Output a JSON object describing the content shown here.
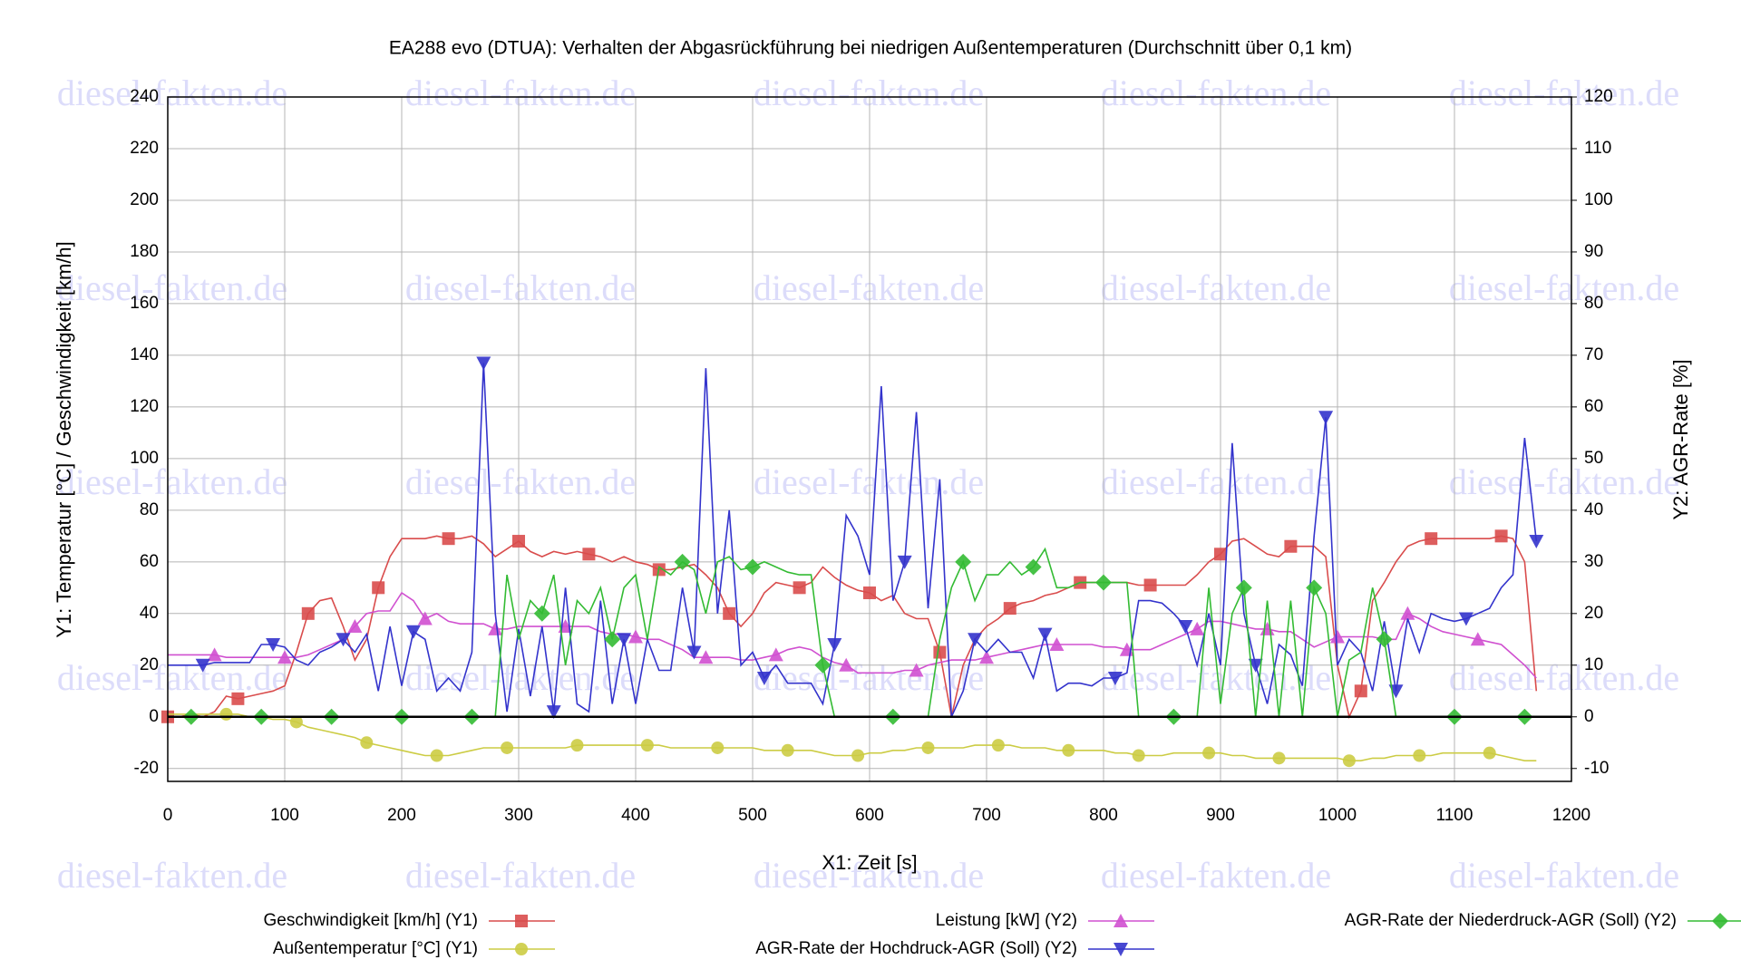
{
  "chart_data": {
    "type": "line",
    "title": "EA288 evo (DTUA): Verhalten der Abgasrückführung bei niedrigen Außentemperaturen (Durchschnitt über 0,1 km)",
    "watermark": "diesel-fakten.de",
    "x_label": "X1: Zeit [s]",
    "y_label": "Y1: Temperatur [°C] / Geschwindigkeit [km/h]",
    "y2_label": "Y2: AGR-Rate [%]",
    "xlim": [
      0,
      1200
    ],
    "xticks": [
      0,
      100,
      200,
      300,
      400,
      500,
      600,
      700,
      800,
      900,
      1000,
      1100,
      1200
    ],
    "ylim": [
      -25,
      240
    ],
    "yticks": [
      -20,
      0,
      20,
      40,
      60,
      80,
      100,
      120,
      140,
      160,
      180,
      200,
      220,
      240
    ],
    "y2lim": [
      -12.5,
      120
    ],
    "y2ticks": [
      -10,
      0,
      10,
      20,
      30,
      40,
      50,
      60,
      70,
      80,
      90,
      100,
      110,
      120
    ],
    "grid": true,
    "x": [
      0,
      10,
      20,
      30,
      40,
      50,
      60,
      70,
      80,
      90,
      100,
      110,
      120,
      130,
      140,
      150,
      160,
      170,
      180,
      190,
      200,
      210,
      220,
      230,
      240,
      250,
      260,
      270,
      280,
      290,
      300,
      310,
      320,
      330,
      340,
      350,
      360,
      370,
      380,
      390,
      400,
      410,
      420,
      430,
      440,
      450,
      460,
      470,
      480,
      490,
      500,
      510,
      520,
      530,
      540,
      550,
      560,
      570,
      580,
      590,
      600,
      610,
      620,
      630,
      640,
      650,
      660,
      670,
      680,
      690,
      700,
      710,
      720,
      730,
      740,
      750,
      760,
      770,
      780,
      790,
      800,
      810,
      820,
      830,
      840,
      850,
      860,
      870,
      880,
      890,
      900,
      910,
      920,
      930,
      940,
      950,
      960,
      970,
      980,
      990,
      1000,
      1010,
      1020,
      1030,
      1040,
      1050,
      1060,
      1070,
      1080,
      1090,
      1100,
      1110,
      1120,
      1130,
      1140,
      1150,
      1160,
      1170
    ],
    "series": [
      {
        "name": "Geschwindigkeit [km/h] (Y1)",
        "color": "#d94c4c",
        "marker": "square",
        "axis": "y1",
        "values": [
          0,
          0,
          1,
          0,
          2,
          8,
          7,
          8,
          9,
          10,
          12,
          25,
          40,
          45,
          46,
          35,
          22,
          30,
          50,
          62,
          69,
          69,
          69,
          70,
          69,
          69,
          70,
          67,
          62,
          65,
          68,
          64,
          62,
          64,
          63,
          64,
          63,
          62,
          60,
          62,
          60,
          59,
          57,
          57,
          58,
          59,
          55,
          50,
          40,
          35,
          40,
          48,
          52,
          51,
          50,
          52,
          58,
          54,
          51,
          49,
          48,
          45,
          47,
          40,
          38,
          38,
          25,
          0,
          20,
          30,
          35,
          38,
          42,
          44,
          45,
          47,
          48,
          50,
          52,
          52,
          52,
          52,
          52,
          51,
          51,
          51,
          51,
          51,
          55,
          60,
          63,
          68,
          69,
          66,
          63,
          62,
          66,
          66,
          66,
          62,
          20,
          0,
          10,
          45,
          52,
          60,
          66,
          68,
          69,
          69,
          69,
          69,
          69,
          69,
          70,
          69,
          60,
          10
        ]
      },
      {
        "name": "Außentemperatur [°C] (Y1)",
        "color": "#cccc44",
        "marker": "circle",
        "axis": "y1",
        "values": [
          1,
          1,
          1,
          1,
          1,
          1,
          1,
          0,
          0,
          -1,
          -1,
          -2,
          -4,
          -5,
          -6,
          -7,
          -8,
          -10,
          -11,
          -12,
          -13,
          -14,
          -15,
          -15,
          -15,
          -14,
          -13,
          -12,
          -12,
          -12,
          -12,
          -12,
          -12,
          -12,
          -12,
          -11,
          -11,
          -11,
          -11,
          -11,
          -11,
          -11,
          -11,
          -12,
          -12,
          -12,
          -12,
          -12,
          -12,
          -12,
          -12,
          -13,
          -13,
          -13,
          -13,
          -13,
          -14,
          -15,
          -15,
          -15,
          -14,
          -14,
          -13,
          -13,
          -12,
          -12,
          -12,
          -12,
          -12,
          -11,
          -11,
          -11,
          -11,
          -12,
          -12,
          -12,
          -13,
          -13,
          -13,
          -13,
          -13,
          -14,
          -14,
          -15,
          -15,
          -15,
          -14,
          -14,
          -14,
          -14,
          -14,
          -15,
          -15,
          -16,
          -16,
          -16,
          -16,
          -16,
          -16,
          -16,
          -16,
          -17,
          -17,
          -16,
          -16,
          -15,
          -15,
          -15,
          -15,
          -14,
          -14,
          -14,
          -14,
          -14,
          -15,
          -16,
          -17,
          -17
        ]
      },
      {
        "name": "Leistung [kW] (Y2)",
        "color": "#d050d0",
        "marker": "triangle-up",
        "axis": "y2",
        "values": [
          12,
          12,
          12,
          12,
          12,
          11.5,
          11.5,
          11.5,
          11.5,
          11.5,
          11.5,
          11.5,
          12,
          13,
          14,
          15,
          17.5,
          20,
          20.5,
          20.5,
          24,
          22.5,
          19,
          20,
          18.5,
          18,
          18,
          18,
          17,
          17,
          17.5,
          17.5,
          17.5,
          17.5,
          17.5,
          17.5,
          17.5,
          16.5,
          16,
          16,
          15.5,
          15,
          15,
          14,
          13,
          11.5,
          11.5,
          11.5,
          11.5,
          11,
          11,
          11.5,
          12,
          13,
          13.5,
          13,
          11.5,
          10.5,
          10,
          8.5,
          8.5,
          8.5,
          8.5,
          9,
          9,
          10,
          10.5,
          11,
          11,
          11,
          11.5,
          12,
          12.5,
          13,
          13.5,
          14,
          14,
          14,
          14,
          14,
          13.5,
          13.5,
          13,
          13,
          13,
          14,
          15,
          16,
          17,
          18.5,
          18.5,
          18,
          17.5,
          17,
          17,
          16.5,
          16.5,
          15,
          13.5,
          14.5,
          15.5,
          15.5,
          15.5,
          15.5,
          15,
          15,
          20,
          19,
          17.5,
          16.5,
          16,
          15.5,
          15,
          14.5,
          14,
          12,
          10,
          7.5
        ]
      },
      {
        "name": "AGR-Rate der Hochdruck-AGR (Soll) (Y2)",
        "color": "#3333cc",
        "marker": "triangle-down",
        "axis": "y2",
        "values": [
          10,
          10,
          10,
          10,
          10.5,
          10.5,
          10.5,
          10.5,
          14,
          14,
          13.5,
          11,
          10,
          12.5,
          13.5,
          15,
          12.5,
          16,
          5,
          17.5,
          6,
          16.5,
          15,
          5,
          7.5,
          5,
          12.5,
          68.5,
          20,
          1,
          17,
          4,
          17.5,
          1,
          25,
          2.5,
          1,
          22.5,
          2.5,
          15,
          2.5,
          15,
          9,
          9,
          25,
          12.5,
          67.5,
          20,
          40,
          10,
          12.5,
          7.5,
          10,
          6.5,
          6.5,
          6.5,
          2.5,
          14,
          39,
          35,
          27.5,
          64,
          22.5,
          30,
          59,
          21,
          46,
          0,
          5,
          15,
          12.5,
          15,
          12.5,
          12.5,
          7.5,
          16,
          5,
          6.5,
          6.5,
          6,
          7.5,
          7.5,
          8.5,
          22.5,
          22.5,
          22,
          20,
          17.5,
          10,
          20,
          10,
          53,
          20,
          10,
          2.5,
          14,
          12,
          6,
          35,
          58,
          10,
          15,
          12.5,
          5,
          18.5,
          5,
          19,
          12.5,
          20,
          19,
          18.5,
          19,
          20,
          21,
          25,
          27.5,
          54,
          34
        ]
      },
      {
        "name": "AGR-Rate der Niederdruck-AGR (Soll) (Y2)",
        "color": "#33bb33",
        "marker": "diamond",
        "axis": "y2",
        "values": [
          0,
          0,
          0,
          0,
          0,
          0,
          0,
          0,
          0,
          0,
          0,
          0,
          0,
          0,
          0,
          0,
          0,
          0,
          0,
          0,
          0,
          0,
          0,
          0,
          0,
          0,
          0,
          0,
          0,
          27.5,
          15,
          22.5,
          20,
          27.5,
          10,
          22.5,
          20,
          25,
          15,
          25,
          27.5,
          15,
          29,
          27.5,
          30,
          28.5,
          20,
          30,
          31,
          28.5,
          29,
          30,
          29,
          28,
          27.5,
          27.5,
          10,
          0,
          0,
          0,
          0,
          0,
          0,
          0,
          0,
          0,
          15,
          25,
          30,
          22.5,
          27.5,
          27.5,
          30,
          27.5,
          29,
          32.5,
          25,
          25,
          26,
          26,
          26,
          26,
          26,
          0,
          0,
          0,
          0,
          0,
          0,
          25,
          2.5,
          20,
          25,
          0,
          22.5,
          0,
          22.5,
          0,
          25,
          20,
          0,
          11,
          12.5,
          25,
          15,
          0,
          0,
          0,
          0,
          0,
          0,
          0,
          0,
          0,
          0,
          0,
          0,
          0
        ]
      }
    ]
  }
}
